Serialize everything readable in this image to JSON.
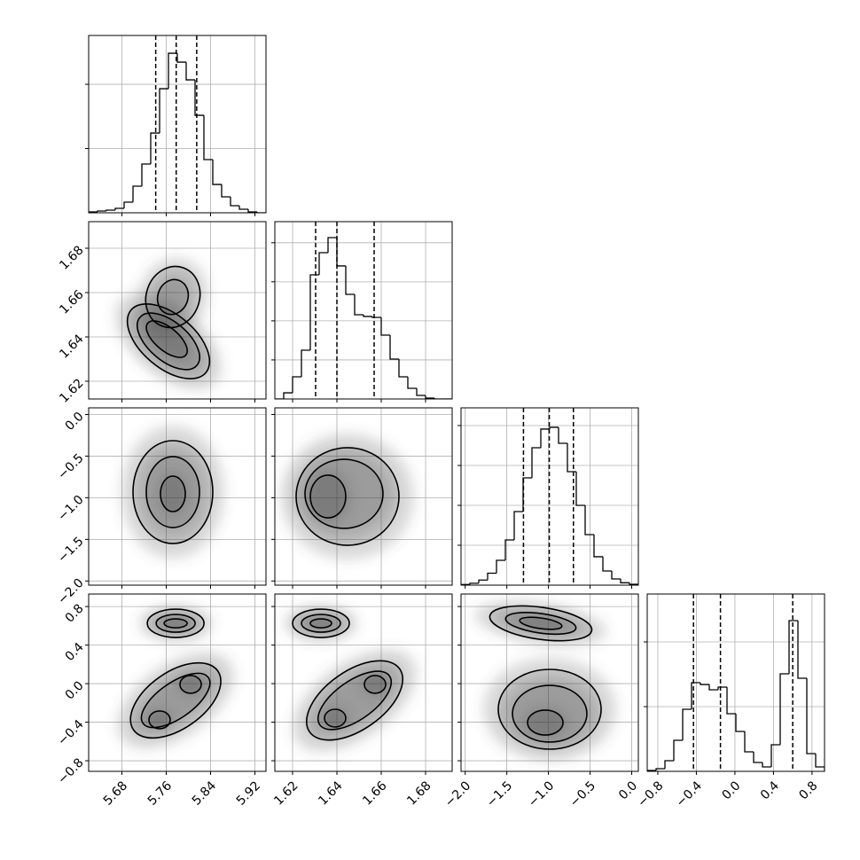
{
  "chart_data": {
    "type": "corner",
    "grid": true,
    "color": "#000000",
    "variables": [
      {
        "xlim": [
          5.62,
          5.94
        ],
        "ticks": [
          5.68,
          5.76,
          5.84,
          5.92
        ],
        "bins": [
          5.62,
          5.636,
          5.652,
          5.668,
          5.684,
          5.7,
          5.716,
          5.732,
          5.748,
          5.764,
          5.78,
          5.796,
          5.812,
          5.828,
          5.844,
          5.86,
          5.876,
          5.892,
          5.908,
          5.924,
          5.94
        ],
        "counts": [
          14,
          28,
          41,
          69,
          166,
          414,
          759,
          1241,
          1931,
          2483,
          2345,
          2069,
          1517,
          828,
          441,
          248,
          110,
          55,
          14,
          0
        ],
        "ylim": [
          0,
          2760
        ],
        "yticks": [
          1000,
          2000
        ],
        "quantiles": [
          5.741,
          5.778,
          5.815
        ]
      },
      {
        "xlim": [
          1.612,
          1.692
        ],
        "ticks": [
          1.62,
          1.64,
          1.66,
          1.68
        ],
        "bins": [
          1.612,
          1.616,
          1.62,
          1.624,
          1.628,
          1.632,
          1.636,
          1.64,
          1.644,
          1.648,
          1.652,
          1.656,
          1.66,
          1.664,
          1.668,
          1.672,
          1.676,
          1.68,
          1.684,
          1.688,
          1.692
        ],
        "counts": [
          0,
          79,
          284,
          624,
          1589,
          1873,
          2066,
          1703,
          1339,
          1078,
          1056,
          1044,
          817,
          511,
          284,
          136,
          45,
          11,
          0,
          0
        ],
        "ylim": [
          0,
          2270
        ],
        "yticks": [
          500,
          1000,
          1500,
          2000
        ],
        "quantiles": [
          1.6304,
          1.64,
          1.6568
        ]
      },
      {
        "xlim": [
          -2.05,
          0.08
        ],
        "ticks": [
          {
            "value": -2,
            "label": "−2.0"
          },
          {
            "value": -1.5,
            "label": "−1.5"
          },
          {
            "value": -1,
            "label": "−1.0"
          },
          {
            "value": -0.5,
            "label": "−0.5"
          },
          {
            "value": 0,
            "label": "0.0"
          }
        ],
        "bins": [
          -2.05,
          -1.9435,
          -1.837,
          -1.7305,
          -1.624,
          -1.5175,
          -1.411,
          -1.3045,
          -1.198,
          -1.0915,
          -0.985,
          -0.8785,
          -0.772,
          -0.6655,
          -0.559,
          -0.4525,
          -0.346,
          -0.2395,
          -0.133,
          -0.0265,
          0.08
        ],
        "counts": [
          8,
          24,
          64,
          150,
          311,
          567,
          922,
          1344,
          1722,
          1956,
          1978,
          1778,
          1422,
          1000,
          633,
          356,
          178,
          78,
          30,
          11
        ],
        "ylim": [
          0,
          2222
        ],
        "yticks": [
          500,
          1000,
          1500,
          2000
        ],
        "quantiles": [
          -1.3,
          -0.99,
          -0.7
        ]
      },
      {
        "xlim": [
          -0.91,
          0.93
        ],
        "ticks": [
          {
            "value": -0.8,
            "label": "−0.8"
          },
          {
            "value": -0.4,
            "label": "−0.4"
          },
          {
            "value": 0,
            "label": "0.0"
          },
          0.4,
          0.8
        ],
        "bins": [
          -0.91,
          -0.818,
          -0.726,
          -0.634,
          -0.542,
          -0.45,
          -0.358,
          -0.266,
          -0.174,
          -0.082,
          0.01,
          0.102,
          0.194,
          0.286,
          0.378,
          0.47,
          0.562,
          0.654,
          0.746,
          0.838,
          0.93
        ],
        "counts": [
          14,
          41,
          164,
          479,
          959,
          1370,
          1342,
          1260,
          1301,
          890,
          616,
          301,
          137,
          68,
          411,
          1507,
          2329,
          1438,
          274,
          68
        ],
        "ylim": [
          0,
          2740
        ],
        "yticks": [
          1000,
          2000
        ],
        "quantiles": [
          -0.43,
          -0.15,
          0.6
        ]
      }
    ],
    "pairs": [
      {
        "contours": [
          {
            "x": 5.764,
            "y": 1.638,
            "rx": 0.088,
            "ry": 0.012,
            "tilt": 40
          },
          {
            "x": 5.764,
            "y": 1.638,
            "rx": 0.0672,
            "ry": 0.0088,
            "tilt": 40
          },
          {
            "x": 5.761,
            "y": 1.639,
            "rx": 0.0448,
            "ry": 0.0052,
            "tilt": 40
          },
          {
            "x": 5.772,
            "y": 1.658,
            "rx": 0.048,
            "ry": 0.014,
            "tilt": 20
          },
          {
            "x": 5.772,
            "y": 1.658,
            "rx": 0.0272,
            "ry": 0.008,
            "tilt": 20
          }
        ]
      },
      {
        "contours": [
          {
            "x": 5.772,
            "y": -0.932,
            "rx": 0.072,
            "ry": 0.618,
            "tilt": 0
          },
          {
            "x": 5.772,
            "y": -0.932,
            "rx": 0.048,
            "ry": 0.426,
            "tilt": 0
          },
          {
            "x": 5.772,
            "y": -0.953,
            "rx": 0.0224,
            "ry": 0.213,
            "tilt": 0
          }
        ]
      },
      {
        "contours": [
          {
            "x": 1.6448,
            "y": -0.985,
            "rx": 0.0232,
            "ry": 0.586,
            "tilt": 0
          },
          {
            "x": 1.6432,
            "y": -0.953,
            "rx": 0.0176,
            "ry": 0.415,
            "tilt": 0
          },
          {
            "x": 1.636,
            "y": -0.985,
            "rx": 0.008,
            "ry": 0.256,
            "tilt": 0
          }
        ]
      },
      {
        "contours": [
          {
            "x": 5.777,
            "y": 0.626,
            "rx": 0.0512,
            "ry": 0.147,
            "tilt": 0
          },
          {
            "x": 5.777,
            "y": 0.626,
            "rx": 0.0352,
            "ry": 0.092,
            "tilt": 0
          },
          {
            "x": 5.777,
            "y": 0.626,
            "rx": 0.0208,
            "ry": 0.046,
            "tilt": 0
          },
          {
            "x": 5.777,
            "y": -0.174,
            "rx": 0.0928,
            "ry": 0.294,
            "tilt": -35
          },
          {
            "x": 5.777,
            "y": -0.174,
            "rx": 0.072,
            "ry": 0.184,
            "tilt": -35
          },
          {
            "x": 5.748,
            "y": -0.376,
            "rx": 0.0192,
            "ry": 0.092,
            "tilt": 0
          },
          {
            "x": 5.804,
            "y": -0.008,
            "rx": 0.0192,
            "ry": 0.092,
            "tilt": 0
          }
        ]
      },
      {
        "contours": [
          {
            "x": 1.6328,
            "y": 0.626,
            "rx": 0.0128,
            "ry": 0.147,
            "tilt": 0
          },
          {
            "x": 1.6328,
            "y": 0.626,
            "rx": 0.0088,
            "ry": 0.092,
            "tilt": 0
          },
          {
            "x": 1.6328,
            "y": 0.626,
            "rx": 0.0048,
            "ry": 0.046,
            "tilt": 0
          },
          {
            "x": 1.648,
            "y": -0.174,
            "rx": 0.0248,
            "ry": 0.304,
            "tilt": -35
          },
          {
            "x": 1.648,
            "y": -0.174,
            "rx": 0.0192,
            "ry": 0.202,
            "tilt": -35
          },
          {
            "x": 1.6392,
            "y": -0.358,
            "rx": 0.0048,
            "ry": 0.092,
            "tilt": 0
          },
          {
            "x": 1.6572,
            "y": -0.008,
            "rx": 0.0048,
            "ry": 0.092,
            "tilt": 0
          }
        ]
      },
      {
        "contours": [
          {
            "x": -1.092,
            "y": 0.626,
            "rx": 0.618,
            "ry": 0.166,
            "tilt": 8
          },
          {
            "x": -1.092,
            "y": 0.626,
            "rx": 0.426,
            "ry": 0.101,
            "tilt": 8
          },
          {
            "x": -1.092,
            "y": 0.626,
            "rx": 0.256,
            "ry": 0.055,
            "tilt": 8
          },
          {
            "x": -0.985,
            "y": -0.266,
            "rx": 0.618,
            "ry": 0.414,
            "tilt": 0
          },
          {
            "x": -0.985,
            "y": -0.312,
            "rx": 0.447,
            "ry": 0.294,
            "tilt": 0
          },
          {
            "x": -1.038,
            "y": -0.404,
            "rx": 0.213,
            "ry": 0.129,
            "tilt": 0
          }
        ]
      }
    ]
  }
}
